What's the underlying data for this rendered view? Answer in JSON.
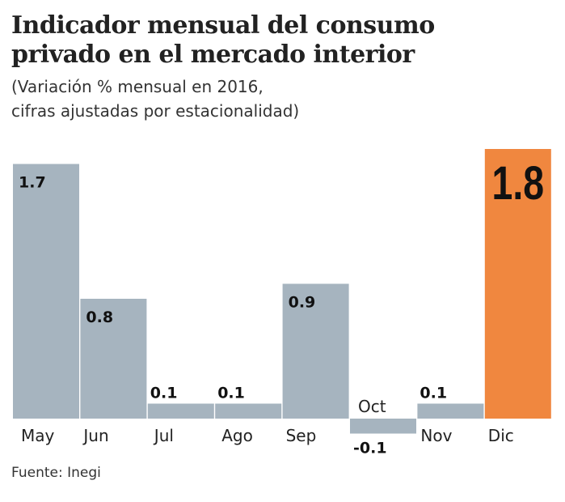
{
  "title_lines": [
    "Indicador mensual del consumo",
    "privado en el mercado interior"
  ],
  "subtitle_lines": [
    "(Variación % mensual en 2016,",
    "cifras ajustadas por estacionalidad)"
  ],
  "source": "Fuente: Inegi",
  "chart_data": {
    "type": "bar",
    "categories": [
      "May",
      "Jun",
      "Jul",
      "Ago",
      "Sep",
      "Oct",
      "Nov",
      "Dic"
    ],
    "values": [
      1.7,
      0.8,
      0.1,
      0.1,
      0.9,
      -0.1,
      0.1,
      1.8
    ],
    "labels": [
      "1.7",
      "0.8",
      "0.1",
      "0.1",
      "0.9",
      "-0.1",
      "0.1",
      "1.8"
    ],
    "highlight_index": 7,
    "colors": {
      "bar": "#a6b4bf",
      "highlight": "#f0873f",
      "text": "#111111"
    }
  }
}
